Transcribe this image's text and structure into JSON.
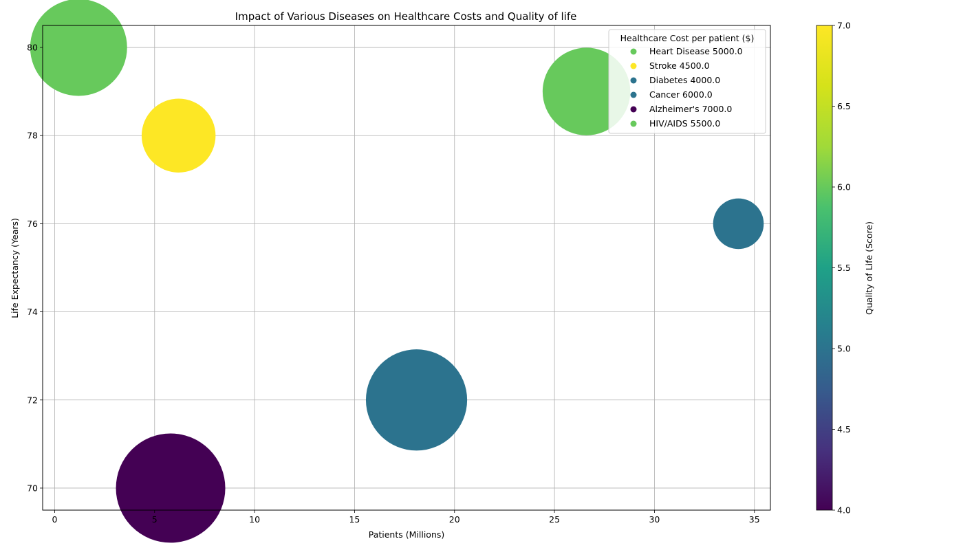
{
  "chart_data": {
    "type": "scatter",
    "title": "Impact of Various Diseases on Healthcare Costs and Quality of life",
    "xlabel": "Patients (Millions)",
    "ylabel": "Life Expectancy (Years)",
    "xlim": [
      -0.6,
      35.8
    ],
    "ylim": [
      69.5,
      80.5
    ],
    "xticks": [
      0,
      5,
      10,
      15,
      20,
      25,
      30,
      35
    ],
    "yticks": [
      70,
      72,
      74,
      76,
      78,
      80
    ],
    "grid": true,
    "legend": {
      "title": "Healthcare Cost per patient ($)",
      "placement": "upper right",
      "entries": [
        {
          "label": "Heart Disease 5000.0",
          "quality": 6
        },
        {
          "label": "Stroke 4500.0",
          "quality": 7
        },
        {
          "label": "Diabetes 4000.0",
          "quality": 5
        },
        {
          "label": "Cancer 6000.0",
          "quality": 5
        },
        {
          "label": "Alzheimer's 7000.0",
          "quality": 4
        },
        {
          "label": "HIV/AIDS 5500.0",
          "quality": 6
        }
      ]
    },
    "colorbar": {
      "label": "Quality of Life (Score)",
      "range": [
        4.0,
        7.0
      ],
      "ticks": [
        "4.0",
        "4.5",
        "5.0",
        "5.5",
        "6.0",
        "6.5",
        "7.0"
      ],
      "colormap": "viridis"
    },
    "points": [
      {
        "x": 1.2,
        "y": 80,
        "quality": 6,
        "bubble_size": 5500
      },
      {
        "x": 6.2,
        "y": 78,
        "quality": 7,
        "bubble_size": 3200
      },
      {
        "x": 34.2,
        "y": 76,
        "quality": 5,
        "bubble_size": 1500
      },
      {
        "x": 18.1,
        "y": 72,
        "quality": 5,
        "bubble_size": 6000
      },
      {
        "x": 26.6,
        "y": 79,
        "quality": 6,
        "bubble_size": 4500
      },
      {
        "x": 5.8,
        "y": 70,
        "quality": 4,
        "bubble_size": 7000
      }
    ]
  }
}
